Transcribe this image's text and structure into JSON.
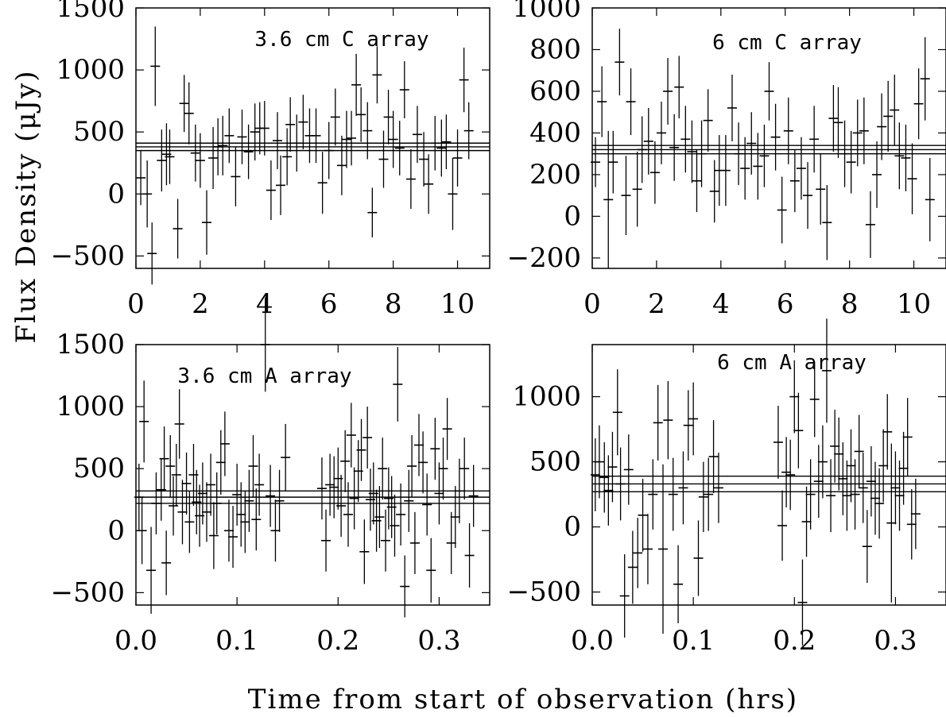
{
  "figure": {
    "xlabel": "Time from start of observation (hrs)",
    "ylabel": "Flux Density (μJy)"
  },
  "chart_data": [
    {
      "type": "scatter",
      "title": "3.6 cm C array",
      "xlim": [
        0,
        11
      ],
      "ylim": [
        -600,
        1500
      ],
      "xticks": [
        "0",
        "2",
        "4",
        "6",
        "8",
        "10"
      ],
      "xtick_values": [
        0,
        2,
        4,
        6,
        8,
        10
      ],
      "yticks": [
        "-500",
        "0",
        "500",
        "1000",
        "1500"
      ],
      "ytick_values": [
        -500,
        0,
        500,
        1000,
        1500
      ],
      "mean_lines": [
        350,
        380,
        410
      ],
      "points": [
        [
          0.15,
          130,
          220
        ],
        [
          0.35,
          0,
          270
        ],
        [
          0.5,
          -480,
          250
        ],
        [
          0.6,
          1030,
          320
        ],
        [
          0.8,
          270,
          250
        ],
        [
          0.95,
          320,
          250
        ],
        [
          1.05,
          300,
          220
        ],
        [
          1.3,
          -280,
          240
        ],
        [
          1.5,
          730,
          230
        ],
        [
          1.65,
          650,
          250
        ],
        [
          1.85,
          330,
          230
        ],
        [
          2.0,
          270,
          220
        ],
        [
          2.2,
          -230,
          260
        ],
        [
          2.4,
          290,
          250
        ],
        [
          2.55,
          380,
          230
        ],
        [
          2.7,
          390,
          240
        ],
        [
          2.9,
          470,
          220
        ],
        [
          3.1,
          140,
          240
        ],
        [
          3.3,
          460,
          220
        ],
        [
          3.5,
          340,
          220
        ],
        [
          3.7,
          500,
          230
        ],
        [
          3.85,
          530,
          210
        ],
        [
          4.0,
          530,
          220
        ],
        [
          4.2,
          30,
          240
        ],
        [
          4.4,
          430,
          230
        ],
        [
          4.5,
          70,
          240
        ],
        [
          4.7,
          300,
          230
        ],
        [
          4.8,
          560,
          220
        ],
        [
          5.0,
          410,
          230
        ],
        [
          5.2,
          580,
          220
        ],
        [
          5.4,
          470,
          220
        ],
        [
          5.6,
          470,
          220
        ],
        [
          5.8,
          90,
          250
        ],
        [
          6.0,
          350,
          230
        ],
        [
          6.2,
          620,
          230
        ],
        [
          6.4,
          230,
          240
        ],
        [
          6.55,
          440,
          230
        ],
        [
          6.7,
          450,
          220
        ],
        [
          6.85,
          880,
          250
        ],
        [
          7.0,
          640,
          220
        ],
        [
          7.2,
          510,
          230
        ],
        [
          7.35,
          -150,
          200
        ],
        [
          7.5,
          960,
          230
        ],
        [
          7.7,
          280,
          230
        ],
        [
          7.85,
          620,
          220
        ],
        [
          8.0,
          440,
          230
        ],
        [
          8.2,
          370,
          220
        ],
        [
          8.35,
          840,
          230
        ],
        [
          8.55,
          120,
          240
        ],
        [
          8.75,
          480,
          230
        ],
        [
          8.95,
          280,
          220
        ],
        [
          9.1,
          80,
          240
        ],
        [
          9.3,
          410,
          220
        ],
        [
          9.5,
          370,
          230
        ],
        [
          9.65,
          420,
          220
        ],
        [
          9.85,
          0,
          290
        ],
        [
          10.0,
          290,
          230
        ],
        [
          10.2,
          920,
          260
        ],
        [
          10.35,
          510,
          230
        ]
      ]
    },
    {
      "type": "scatter",
      "title": "6 cm C array",
      "xlim": [
        0,
        11
      ],
      "ylim": [
        -250,
        1000
      ],
      "xticks": [
        "0",
        "2",
        "4",
        "6",
        "8",
        "10"
      ],
      "xtick_values": [
        0,
        2,
        4,
        6,
        8,
        10
      ],
      "yticks": [
        "-200",
        "0",
        "200",
        "400",
        "600",
        "800",
        "1000"
      ],
      "ytick_values": [
        -200,
        0,
        200,
        400,
        600,
        800,
        1000
      ],
      "mean_lines": [
        300,
        320,
        340
      ],
      "points": [
        [
          0.1,
          260,
          120
        ],
        [
          0.3,
          550,
          170
        ],
        [
          0.5,
          80,
          330
        ],
        [
          0.65,
          260,
          150
        ],
        [
          0.85,
          740,
          160
        ],
        [
          1.05,
          100,
          190
        ],
        [
          1.2,
          550,
          160
        ],
        [
          1.4,
          130,
          180
        ],
        [
          1.55,
          320,
          160
        ],
        [
          1.75,
          360,
          160
        ],
        [
          1.95,
          210,
          150
        ],
        [
          2.15,
          400,
          150
        ],
        [
          2.35,
          600,
          160
        ],
        [
          2.55,
          330,
          160
        ],
        [
          2.7,
          620,
          150
        ],
        [
          2.9,
          370,
          160
        ],
        [
          3.1,
          310,
          150
        ],
        [
          3.25,
          170,
          150
        ],
        [
          3.4,
          300,
          160
        ],
        [
          3.6,
          460,
          150
        ],
        [
          3.8,
          120,
          150
        ],
        [
          3.95,
          220,
          170
        ],
        [
          4.15,
          220,
          170
        ],
        [
          4.35,
          520,
          160
        ],
        [
          4.55,
          300,
          150
        ],
        [
          4.75,
          230,
          150
        ],
        [
          4.95,
          350,
          150
        ],
        [
          5.15,
          240,
          160
        ],
        [
          5.35,
          290,
          150
        ],
        [
          5.5,
          600,
          140
        ],
        [
          5.7,
          380,
          160
        ],
        [
          5.9,
          30,
          160
        ],
        [
          6.1,
          410,
          160
        ],
        [
          6.3,
          170,
          150
        ],
        [
          6.5,
          230,
          150
        ],
        [
          6.7,
          100,
          160
        ],
        [
          6.9,
          370,
          160
        ],
        [
          7.1,
          130,
          170
        ],
        [
          7.3,
          -30,
          180
        ],
        [
          7.5,
          470,
          160
        ],
        [
          7.65,
          450,
          170
        ],
        [
          7.85,
          300,
          160
        ],
        [
          8.05,
          260,
          150
        ],
        [
          8.25,
          400,
          160
        ],
        [
          8.45,
          410,
          160
        ],
        [
          8.65,
          -40,
          160
        ],
        [
          8.85,
          200,
          160
        ],
        [
          9.0,
          430,
          160
        ],
        [
          9.2,
          480,
          170
        ],
        [
          9.4,
          510,
          170
        ],
        [
          9.55,
          290,
          160
        ],
        [
          9.75,
          280,
          160
        ],
        [
          9.95,
          180,
          170
        ],
        [
          10.15,
          540,
          170
        ],
        [
          10.35,
          660,
          200
        ],
        [
          10.5,
          80,
          200
        ]
      ]
    },
    {
      "type": "scatter",
      "title": "3.6 cm A array",
      "xlim": [
        0,
        0.35
      ],
      "ylim": [
        -600,
        1500
      ],
      "xticks": [
        "0.0",
        "0.1",
        "0.2",
        "0.3"
      ],
      "xtick_values": [
        0,
        0.1,
        0.2,
        0.3
      ],
      "yticks": [
        "-500",
        "0",
        "500",
        "1000",
        "1500"
      ],
      "ytick_values": [
        -500,
        0,
        500,
        1000,
        1500
      ],
      "mean_lines": [
        220,
        270,
        320
      ],
      "points": [
        [
          0.003,
          270,
          270
        ],
        [
          0.006,
          0,
          270
        ],
        [
          0.008,
          880,
          330
        ],
        [
          0.015,
          -320,
          350
        ],
        [
          0.02,
          220,
          250
        ],
        [
          0.025,
          330,
          250
        ],
        [
          0.028,
          580,
          260
        ],
        [
          0.03,
          -260,
          260
        ],
        [
          0.034,
          520,
          250
        ],
        [
          0.037,
          200,
          240
        ],
        [
          0.04,
          450,
          250
        ],
        [
          0.043,
          860,
          280
        ],
        [
          0.046,
          150,
          260
        ],
        [
          0.05,
          380,
          250
        ],
        [
          0.053,
          70,
          250
        ],
        [
          0.057,
          450,
          250
        ],
        [
          0.06,
          230,
          260
        ],
        [
          0.063,
          120,
          250
        ],
        [
          0.066,
          300,
          250
        ],
        [
          0.07,
          150,
          240
        ],
        [
          0.074,
          370,
          250
        ],
        [
          0.077,
          -40,
          270
        ],
        [
          0.08,
          220,
          250
        ],
        [
          0.084,
          550,
          260
        ],
        [
          0.088,
          700,
          260
        ],
        [
          0.092,
          0,
          250
        ],
        [
          0.096,
          -50,
          250
        ],
        [
          0.1,
          290,
          250
        ],
        [
          0.104,
          130,
          260
        ],
        [
          0.108,
          70,
          250
        ],
        [
          0.112,
          240,
          250
        ],
        [
          0.116,
          520,
          250
        ],
        [
          0.119,
          90,
          250
        ],
        [
          0.122,
          370,
          250
        ],
        [
          0.128,
          1500,
          380
        ],
        [
          0.133,
          280,
          250
        ],
        [
          0.138,
          0,
          250
        ],
        [
          0.142,
          240,
          250
        ],
        [
          0.148,
          590,
          270
        ],
        [
          0.184,
          340,
          250
        ],
        [
          0.188,
          -80,
          250
        ],
        [
          0.192,
          370,
          250
        ],
        [
          0.196,
          350,
          250
        ],
        [
          0.2,
          420,
          250
        ],
        [
          0.203,
          200,
          250
        ],
        [
          0.207,
          560,
          250
        ],
        [
          0.21,
          130,
          260
        ],
        [
          0.213,
          770,
          260
        ],
        [
          0.216,
          260,
          250
        ],
        [
          0.22,
          480,
          250
        ],
        [
          0.223,
          650,
          250
        ],
        [
          0.226,
          -170,
          260
        ],
        [
          0.229,
          750,
          250
        ],
        [
          0.232,
          250,
          250
        ],
        [
          0.235,
          300,
          250
        ],
        [
          0.238,
          80,
          250
        ],
        [
          0.241,
          110,
          250
        ],
        [
          0.244,
          500,
          250
        ],
        [
          0.247,
          -80,
          250
        ],
        [
          0.25,
          260,
          250
        ],
        [
          0.253,
          190,
          250
        ],
        [
          0.256,
          40,
          250
        ],
        [
          0.259,
          1180,
          300
        ],
        [
          0.262,
          130,
          250
        ],
        [
          0.266,
          -450,
          250
        ],
        [
          0.27,
          240,
          250
        ],
        [
          0.273,
          520,
          250
        ],
        [
          0.276,
          -100,
          250
        ],
        [
          0.28,
          690,
          250
        ],
        [
          0.284,
          550,
          250
        ],
        [
          0.288,
          210,
          250
        ],
        [
          0.292,
          -320,
          260
        ],
        [
          0.296,
          660,
          250
        ],
        [
          0.3,
          300,
          250
        ],
        [
          0.304,
          500,
          250
        ],
        [
          0.308,
          820,
          250
        ],
        [
          0.312,
          -100,
          250
        ],
        [
          0.316,
          110,
          250
        ],
        [
          0.32,
          320,
          260
        ],
        [
          0.325,
          500,
          250
        ],
        [
          0.33,
          -200,
          260
        ],
        [
          0.334,
          280,
          250
        ]
      ]
    },
    {
      "type": "scatter",
      "title": "6 cm A array",
      "xlim": [
        0,
        0.35
      ],
      "ylim": [
        -600,
        1400
      ],
      "xticks": [
        "0.0",
        "0.1",
        "0.2",
        "0.3"
      ],
      "xtick_values": [
        0,
        0.1,
        0.2,
        0.3
      ],
      "yticks": [
        "-500",
        "0",
        "500",
        "1000"
      ],
      "ytick_values": [
        -500,
        0,
        500,
        1000
      ],
      "mean_lines": [
        270,
        330,
        390
      ],
      "points": [
        [
          0.003,
          400,
          280
        ],
        [
          0.007,
          500,
          280
        ],
        [
          0.012,
          380,
          270
        ],
        [
          0.016,
          280,
          270
        ],
        [
          0.02,
          460,
          270
        ],
        [
          0.025,
          880,
          330
        ],
        [
          0.028,
          330,
          280
        ],
        [
          0.032,
          -530,
          320
        ],
        [
          0.036,
          440,
          270
        ],
        [
          0.04,
          -310,
          280
        ],
        [
          0.045,
          -200,
          270
        ],
        [
          0.05,
          90,
          280
        ],
        [
          0.055,
          -170,
          270
        ],
        [
          0.06,
          250,
          270
        ],
        [
          0.065,
          800,
          290
        ],
        [
          0.07,
          -170,
          650
        ],
        [
          0.075,
          820,
          300
        ],
        [
          0.08,
          250,
          280
        ],
        [
          0.085,
          -440,
          300
        ],
        [
          0.09,
          300,
          280
        ],
        [
          0.095,
          780,
          270
        ],
        [
          0.1,
          830,
          280
        ],
        [
          0.105,
          -240,
          290
        ],
        [
          0.11,
          230,
          270
        ],
        [
          0.115,
          250,
          280
        ],
        [
          0.12,
          540,
          280
        ],
        [
          0.125,
          300,
          270
        ],
        [
          0.184,
          650,
          280
        ],
        [
          0.188,
          10,
          270
        ],
        [
          0.192,
          420,
          270
        ],
        [
          0.196,
          400,
          270
        ],
        [
          0.2,
          1000,
          280
        ],
        [
          0.204,
          740,
          290
        ],
        [
          0.208,
          -580,
          330
        ],
        [
          0.212,
          40,
          270
        ],
        [
          0.216,
          250,
          270
        ],
        [
          0.22,
          980,
          290
        ],
        [
          0.224,
          350,
          280
        ],
        [
          0.228,
          500,
          280
        ],
        [
          0.232,
          1200,
          400
        ],
        [
          0.236,
          240,
          280
        ],
        [
          0.24,
          620,
          280
        ],
        [
          0.244,
          560,
          280
        ],
        [
          0.248,
          370,
          280
        ],
        [
          0.252,
          240,
          270
        ],
        [
          0.256,
          470,
          280
        ],
        [
          0.26,
          250,
          270
        ],
        [
          0.264,
          580,
          280
        ],
        [
          0.268,
          300,
          270
        ],
        [
          0.272,
          -150,
          280
        ],
        [
          0.276,
          350,
          270
        ],
        [
          0.28,
          220,
          280
        ],
        [
          0.284,
          180,
          270
        ],
        [
          0.288,
          470,
          280
        ],
        [
          0.292,
          730,
          290
        ],
        [
          0.296,
          30,
          610
        ],
        [
          0.3,
          300,
          280
        ],
        [
          0.304,
          240,
          270
        ],
        [
          0.308,
          450,
          280
        ],
        [
          0.312,
          690,
          300
        ],
        [
          0.316,
          20,
          270
        ],
        [
          0.32,
          100,
          270
        ]
      ]
    }
  ]
}
